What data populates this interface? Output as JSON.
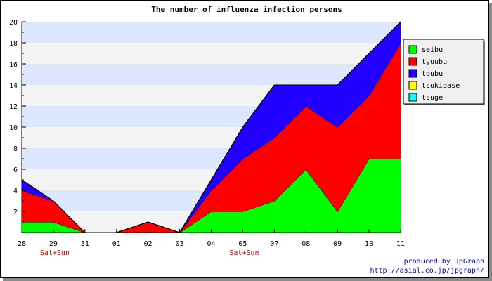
{
  "chart_data": {
    "type": "area",
    "stacked": true,
    "title": "The number of influenza infection persons",
    "xlabel": "",
    "ylabel": "",
    "categories": [
      "28",
      "29",
      "31",
      "01",
      "02",
      "03",
      "04",
      "05",
      "07",
      "08",
      "09",
      "10",
      "11"
    ],
    "ylim": [
      0,
      20
    ],
    "yticks": [
      2,
      4,
      6,
      8,
      10,
      12,
      14,
      16,
      18,
      20
    ],
    "grid": "horizontal alternating bands",
    "legend_position": "right",
    "series": [
      {
        "name": "seibu",
        "color": "#00ff00",
        "values": [
          1,
          1,
          0,
          0,
          0,
          0,
          2,
          2,
          3,
          6,
          2,
          7,
          7
        ]
      },
      {
        "name": "tyuubu",
        "color": "#ff0000",
        "values": [
          3,
          2,
          0,
          0,
          1,
          0,
          2,
          5,
          6,
          6,
          8,
          6,
          11
        ]
      },
      {
        "name": "toubu",
        "color": "#2200ff",
        "values": [
          1,
          0,
          0,
          0,
          0,
          0,
          1,
          3,
          5,
          2,
          4,
          4,
          2
        ]
      },
      {
        "name": "tsukigase",
        "color": "#ffff00",
        "values": [
          0,
          0,
          0,
          0,
          0,
          0,
          0,
          0,
          0,
          0,
          0,
          0,
          0
        ]
      },
      {
        "name": "tsuge",
        "color": "#00ffff",
        "values": [
          0,
          0,
          0,
          0,
          0,
          0,
          0,
          0,
          0,
          0,
          0,
          0,
          0
        ]
      }
    ],
    "annotations": [
      {
        "category": "29",
        "text": "Sat+Sun"
      },
      {
        "category": "05",
        "text": "Sat+Sun"
      }
    ]
  },
  "credit": {
    "line1": "produced by JpGraph",
    "line2": "http://asial.co.jp/jpgraph/"
  },
  "colors": {
    "band_blue": "#dde6ff",
    "band_gray": "#f4f4f4"
  }
}
